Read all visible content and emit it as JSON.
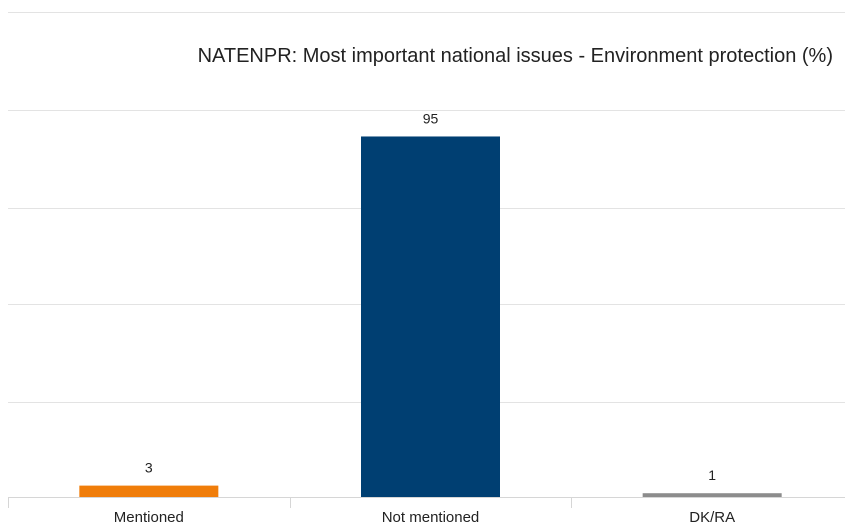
{
  "chart_data": {
    "type": "bar",
    "title": "NATENPR: Most important national issues - Environment protection (%)",
    "categories": [
      "Mentioned",
      "Not mentioned",
      "DK/RA"
    ],
    "values": [
      3,
      95,
      1
    ],
    "data_labels": [
      "3",
      "95",
      "1"
    ],
    "colors": [
      "#f07d0a",
      "#003f72",
      "#8c8c8c"
    ],
    "xlabel": "",
    "ylabel": "",
    "ylim": [
      0,
      100
    ],
    "grid": true,
    "legend": "none"
  }
}
